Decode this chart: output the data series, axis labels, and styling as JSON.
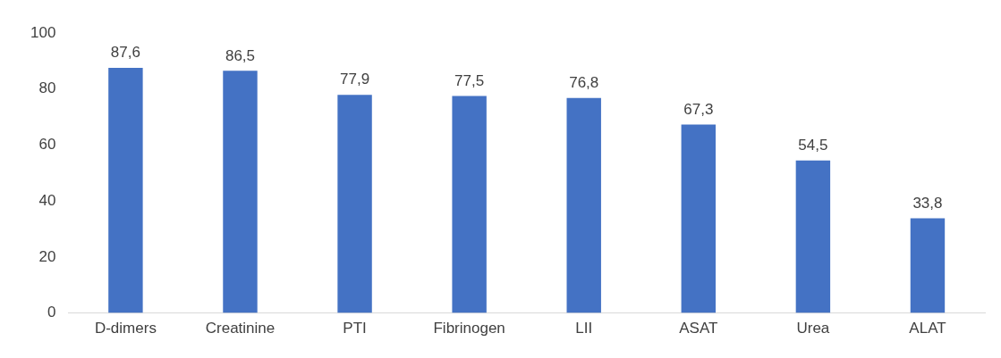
{
  "chart_data": {
    "type": "bar",
    "categories": [
      "D-dimers",
      "Creatinine",
      "PTI",
      "Fibrinogen",
      "LII",
      "ASAT",
      "Urea",
      "ALAT"
    ],
    "values": [
      87.6,
      86.5,
      77.9,
      77.5,
      76.8,
      67.3,
      54.5,
      33.8
    ],
    "value_labels": [
      "87,6",
      "86,5",
      "77,9",
      "77,5",
      "76,8",
      "67,3",
      "54,5",
      "33,8"
    ],
    "color": "#4472c4",
    "ylim": [
      0,
      100
    ],
    "yticks": [
      0,
      20,
      40,
      60,
      80,
      100
    ],
    "grid": false,
    "legend": false
  }
}
